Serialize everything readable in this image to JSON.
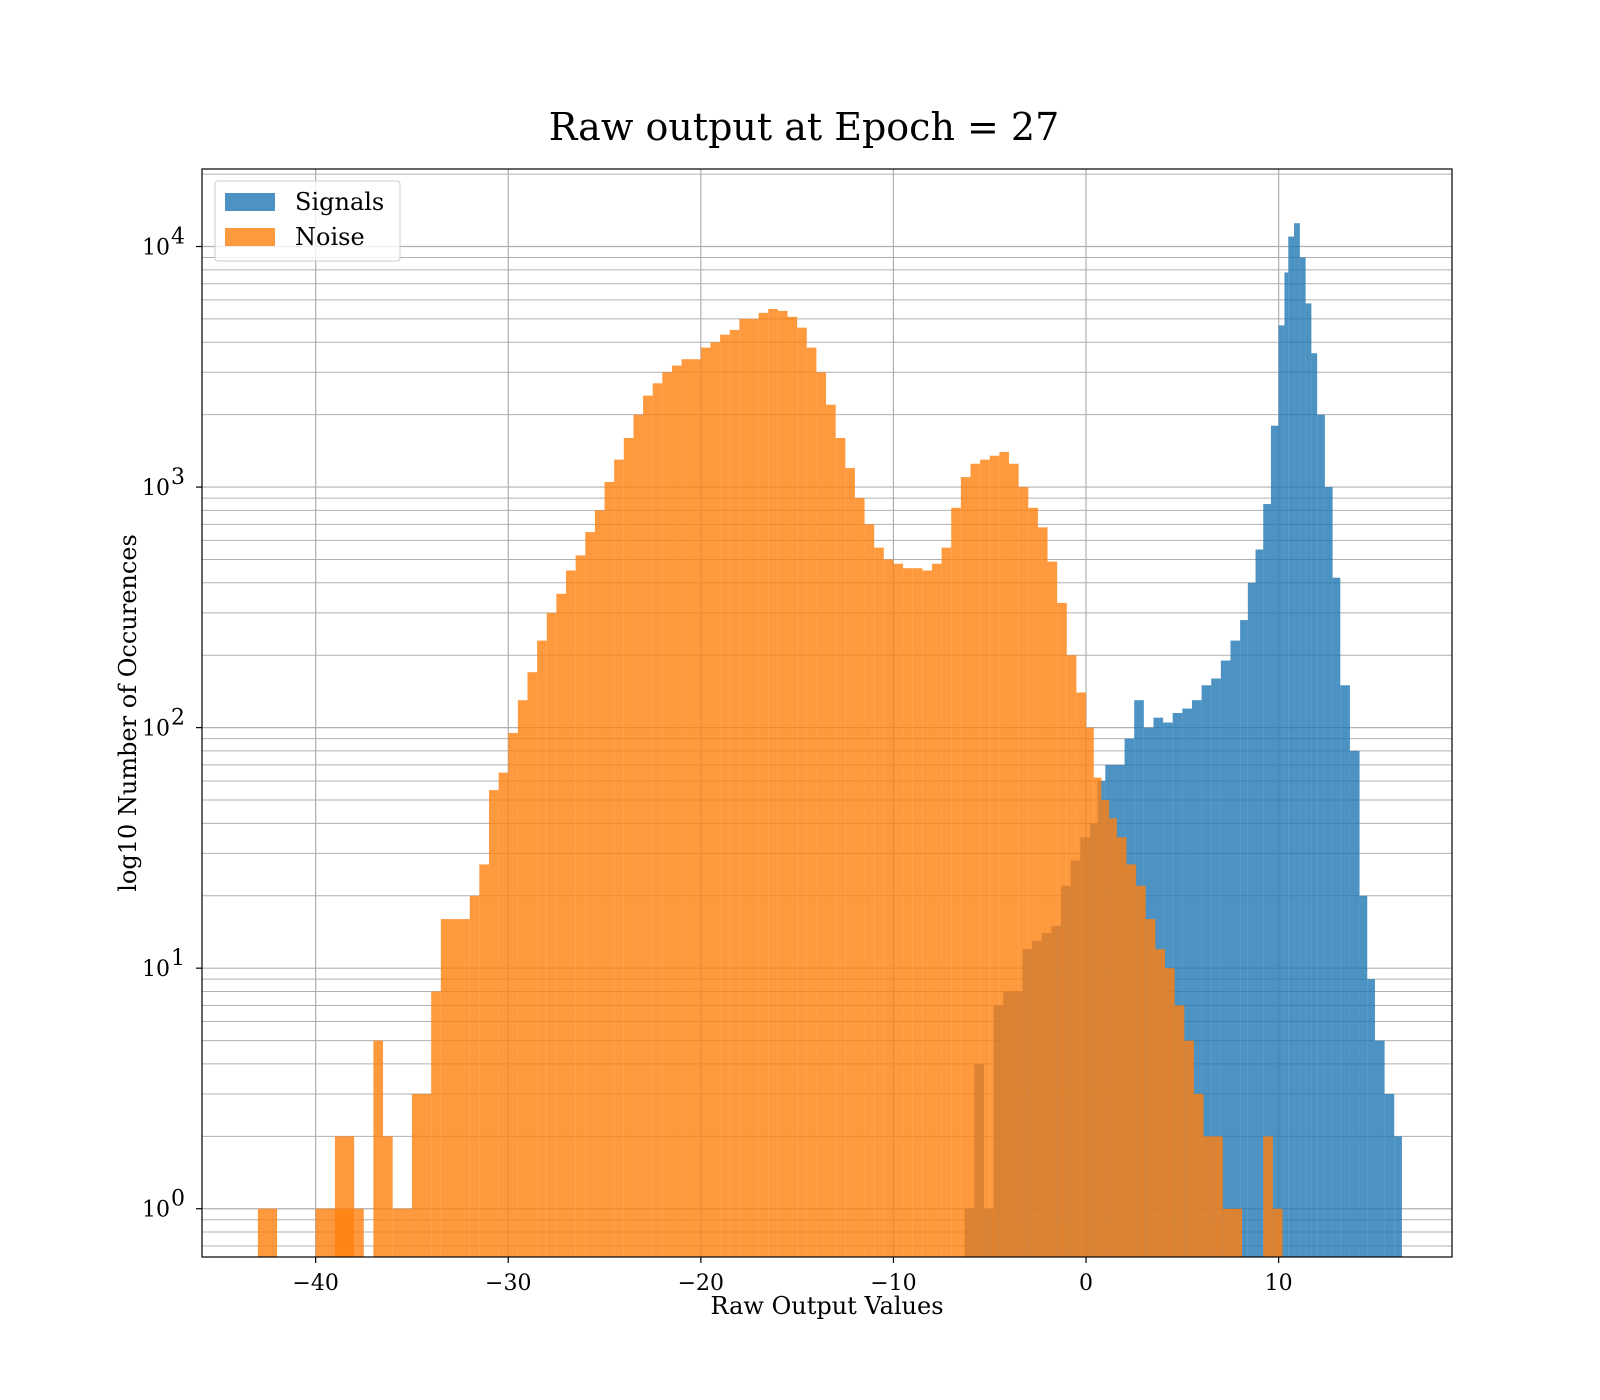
{
  "chart_data": {
    "type": "bar",
    "title": "Raw output at Epoch = 27",
    "xlabel": "Raw Output Values",
    "ylabel": "log10 Number of Occurences",
    "xlim": [
      -45.9,
      19.0
    ],
    "ylim": [
      0.63,
      21000
    ],
    "yscale": "log",
    "grid": true,
    "grid_minor_y": true,
    "legend_position": "upper-left",
    "x_ticks": [
      -40,
      -30,
      -20,
      -10,
      0,
      10
    ],
    "x_tick_labels": [
      "−40",
      "−30",
      "−20",
      "−10",
      "0",
      "10"
    ],
    "y_ticks": [
      {
        "value": 1,
        "base": "10",
        "exp": "0"
      },
      {
        "value": 10,
        "base": "10",
        "exp": "1"
      },
      {
        "value": 100,
        "base": "10",
        "exp": "2"
      },
      {
        "value": 1000,
        "base": "10",
        "exp": "3"
      },
      {
        "value": 10000,
        "base": "10",
        "exp": "4"
      }
    ],
    "series": [
      {
        "name": "Signals",
        "color": "#1f77b4",
        "opacity": 0.8,
        "bins": [
          [
            -6.3,
            -5.8,
            1
          ],
          [
            -5.8,
            -5.3,
            4
          ],
          [
            -5.3,
            -4.8,
            1
          ],
          [
            -4.8,
            -4.3,
            7
          ],
          [
            -4.3,
            -3.8,
            8
          ],
          [
            -3.8,
            -3.3,
            8
          ],
          [
            -3.3,
            -2.8,
            12
          ],
          [
            -2.8,
            -2.3,
            13
          ],
          [
            -2.3,
            -1.8,
            14
          ],
          [
            -1.8,
            -1.3,
            15
          ],
          [
            -1.3,
            -0.8,
            22
          ],
          [
            -0.8,
            -0.3,
            28
          ],
          [
            -0.3,
            0.2,
            35
          ],
          [
            0.2,
            0.6,
            40
          ],
          [
            0.6,
            1.0,
            60
          ],
          [
            1.0,
            1.5,
            70
          ],
          [
            1.5,
            2.0,
            70
          ],
          [
            2.0,
            2.5,
            90
          ],
          [
            2.5,
            3.0,
            130
          ],
          [
            3.0,
            3.5,
            100
          ],
          [
            3.5,
            4.0,
            110
          ],
          [
            4.0,
            4.5,
            105
          ],
          [
            4.5,
            5.0,
            115
          ],
          [
            5.0,
            5.5,
            120
          ],
          [
            5.5,
            6.0,
            130
          ],
          [
            6.0,
            6.5,
            150
          ],
          [
            6.5,
            7.0,
            160
          ],
          [
            7.0,
            7.5,
            190
          ],
          [
            7.5,
            8.0,
            230
          ],
          [
            8.0,
            8.4,
            280
          ],
          [
            8.4,
            8.8,
            400
          ],
          [
            8.8,
            9.2,
            550
          ],
          [
            9.2,
            9.6,
            850
          ],
          [
            9.6,
            10.0,
            1800
          ],
          [
            10.0,
            10.3,
            4700
          ],
          [
            10.3,
            10.5,
            7800
          ],
          [
            10.5,
            10.8,
            11000
          ],
          [
            10.8,
            11.1,
            12500
          ],
          [
            11.1,
            11.4,
            9000
          ],
          [
            11.4,
            11.7,
            5800
          ],
          [
            11.7,
            12.0,
            3600
          ],
          [
            12.0,
            12.4,
            2000
          ],
          [
            12.4,
            12.8,
            1000
          ],
          [
            12.8,
            13.2,
            420
          ],
          [
            13.2,
            13.7,
            150
          ],
          [
            13.7,
            14.2,
            80
          ],
          [
            14.2,
            14.6,
            20
          ],
          [
            14.6,
            15.0,
            9
          ],
          [
            15.0,
            15.5,
            5
          ],
          [
            15.5,
            16.0,
            3
          ],
          [
            16.0,
            16.4,
            2
          ]
        ]
      },
      {
        "name": "Noise",
        "color": "#ff7f0e",
        "opacity": 0.8,
        "bins": [
          [
            -43,
            -42,
            1
          ],
          [
            -40,
            -38,
            1
          ],
          [
            -39,
            -38,
            2
          ],
          [
            -38,
            -37.5,
            1
          ],
          [
            -37,
            -36.5,
            5
          ],
          [
            -36.5,
            -36,
            2
          ],
          [
            -36,
            -35,
            1
          ],
          [
            -35,
            -34,
            3
          ],
          [
            -34,
            -33.5,
            8
          ],
          [
            -33.5,
            -32,
            16
          ],
          [
            -32,
            -31.5,
            20
          ],
          [
            -31.5,
            -31,
            27
          ],
          [
            -31,
            -30.5,
            55
          ],
          [
            -30.5,
            -30,
            65
          ],
          [
            -30,
            -29.5,
            95
          ],
          [
            -29.5,
            -29,
            130
          ],
          [
            -29,
            -28.5,
            170
          ],
          [
            -28.5,
            -28,
            230
          ],
          [
            -28,
            -27.5,
            300
          ],
          [
            -27.5,
            -27,
            360
          ],
          [
            -27,
            -26.5,
            450
          ],
          [
            -26.5,
            -26,
            520
          ],
          [
            -26,
            -25.5,
            650
          ],
          [
            -25.5,
            -25,
            800
          ],
          [
            -25,
            -24.5,
            1050
          ],
          [
            -24.5,
            -24,
            1300
          ],
          [
            -24,
            -23.5,
            1600
          ],
          [
            -23.5,
            -23,
            2000
          ],
          [
            -23,
            -22.5,
            2400
          ],
          [
            -22.5,
            -22,
            2700
          ],
          [
            -22,
            -21.5,
            3000
          ],
          [
            -21.5,
            -21,
            3200
          ],
          [
            -21,
            -20,
            3400
          ],
          [
            -20,
            -19.5,
            3800
          ],
          [
            -19.5,
            -19,
            4000
          ],
          [
            -19,
            -18.5,
            4300
          ],
          [
            -18.5,
            -18,
            4500
          ],
          [
            -18,
            -17,
            5000
          ],
          [
            -17,
            -16.5,
            5300
          ],
          [
            -16.5,
            -16,
            5500
          ],
          [
            -16,
            -15.5,
            5400
          ],
          [
            -15.5,
            -15,
            5100
          ],
          [
            -15,
            -14.5,
            4600
          ],
          [
            -14.5,
            -14,
            3800
          ],
          [
            -14,
            -13.5,
            3000
          ],
          [
            -13.5,
            -13,
            2200
          ],
          [
            -13,
            -12.5,
            1600
          ],
          [
            -12.5,
            -12,
            1200
          ],
          [
            -12,
            -11.5,
            900
          ],
          [
            -11.5,
            -11,
            700
          ],
          [
            -11,
            -10.5,
            560
          ],
          [
            -10.5,
            -10,
            500
          ],
          [
            -10,
            -9.5,
            480
          ],
          [
            -9.5,
            -9,
            460
          ],
          [
            -9,
            -8.5,
            460
          ],
          [
            -8.5,
            -8,
            450
          ],
          [
            -8,
            -7.5,
            480
          ],
          [
            -7.5,
            -7,
            560
          ],
          [
            -7,
            -6.5,
            820
          ],
          [
            -6.5,
            -6,
            1100
          ],
          [
            -6,
            -5.5,
            1250
          ],
          [
            -5.5,
            -5,
            1300
          ],
          [
            -5,
            -4.5,
            1350
          ],
          [
            -4.5,
            -4,
            1400
          ],
          [
            -4,
            -3.5,
            1250
          ],
          [
            -3.5,
            -3,
            1000
          ],
          [
            -3,
            -2.5,
            820
          ],
          [
            -2.5,
            -2,
            680
          ],
          [
            -2,
            -1.5,
            490
          ],
          [
            -1.5,
            -1,
            330
          ],
          [
            -1,
            -0.5,
            200
          ],
          [
            -0.5,
            0,
            140
          ],
          [
            0,
            0.4,
            100
          ],
          [
            0.4,
            0.8,
            62
          ],
          [
            0.8,
            1.2,
            50
          ],
          [
            1.2,
            1.6,
            42
          ],
          [
            1.6,
            2.1,
            35
          ],
          [
            2.1,
            2.6,
            27
          ],
          [
            2.6,
            3.1,
            22
          ],
          [
            3.1,
            3.6,
            16
          ],
          [
            3.6,
            4.1,
            12
          ],
          [
            4.1,
            4.6,
            10
          ],
          [
            4.6,
            5.1,
            7
          ],
          [
            5.1,
            5.6,
            5
          ],
          [
            5.6,
            6.1,
            3
          ],
          [
            6.1,
            6.6,
            2
          ],
          [
            6.6,
            7.1,
            2
          ],
          [
            7.1,
            7.6,
            1
          ],
          [
            7.6,
            8.1,
            1
          ],
          [
            9.2,
            9.7,
            2
          ],
          [
            9.7,
            10.2,
            1
          ]
        ]
      }
    ]
  }
}
